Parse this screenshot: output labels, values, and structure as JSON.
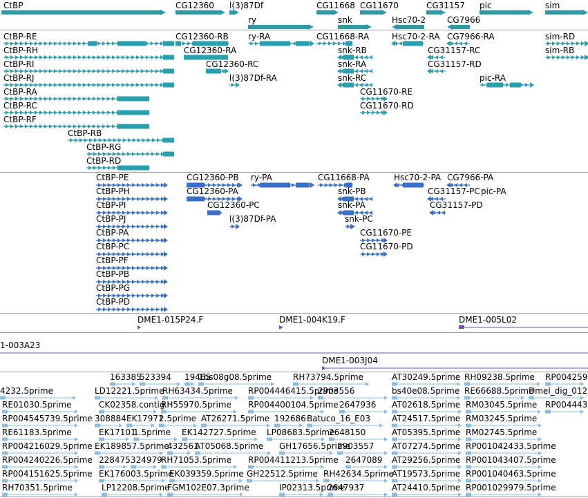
{
  "colors": {
    "gene": "#2e9aa4",
    "transcript_rna": "#2c9fae",
    "transcript_protein": "#3a6fc8",
    "clone": "#7a4fb0",
    "est": "#8cbce0",
    "divider": "#9a9a9a"
  },
  "genes": [
    "CtBP",
    "CG12360",
    "l(3)87Df",
    "CG11668",
    "CG11670",
    "CG31157",
    "pic",
    "sim",
    "ry",
    "snk",
    "Hsc70-2",
    "CG7966"
  ],
  "rna_transcripts": [
    "CtBP-RE",
    "CG12360-RB",
    "ry-RA",
    "CG11668-RA",
    "Hsc70-2-RA",
    "CG7966-RA",
    "sim-RD",
    "CtBP-RH",
    "CG12360-RA",
    "snk-RB",
    "CG31157-RC",
    "sim-RB",
    "CtBP-RI",
    "CG12360-RC",
    "snk-RA",
    "CG31157-RD",
    "CtBP-RJ",
    "l(3)87Df-RA",
    "snk-RC",
    "pic-RA",
    "CtBP-RA",
    "CG11670-RE",
    "CtBP-RC",
    "CG11670-RD",
    "CtBP-RF",
    "CtBP-RB",
    "CtBP-RG",
    "CtBP-RD"
  ],
  "protein_transcripts": [
    "CtBP-PE",
    "CG12360-PB",
    "ry-PA",
    "CG11668-PA",
    "Hsc70-2-PA",
    "CG7966-PA",
    "CtBP-PH",
    "CG12360-PA",
    "snk-PB",
    "CG31157-PC",
    "pic-PA",
    "CtBP-PI",
    "CG12360-PC",
    "snk-PA",
    "CG31157-PD",
    "CtBP-PJ",
    "l(3)87Df-PA",
    "snk-PC",
    "CtBP-PA",
    "CG11670-PE",
    "CtBP-PC",
    "CG11670-PD",
    "CtBP-PF",
    "CtBP-PB",
    "CtBP-PG",
    "CtBP-PD"
  ],
  "clones": [
    "DME1-015P24.F",
    "DME1-004K19.F",
    "DME1-005L02",
    "1-003A23",
    "DME1-003J04"
  ],
  "ests": [
    "163385",
    "523394",
    "19465",
    "1bs08g08.5prime",
    "RH73794.5prime",
    "AT30249.5prime",
    "RH09238.5prime",
    "RP004259",
    "4232.5prime",
    "LD12221.5prime",
    "RH63434.5prime",
    "RP004446415.5prime",
    "2903556",
    "bs40e08.5prime",
    "RE66688.5prime",
    "Dmel_dig_012",
    "RE01030.5prime",
    "CK02358.contig",
    "RH55970.5prime",
    "RP004400104.5prime",
    "2647936",
    "AT02618.5prime",
    "RM03045.5prime",
    "RP004443",
    "RP004545739.5prime",
    "308884",
    "EK17971",
    "2.5prime",
    "AT26271.5prime",
    "192686",
    "Batuco_16_E03",
    "AT24517.5prime",
    "RM03245.5prime",
    "RE61183.5prime",
    "EK17101",
    "1.5prime",
    "EK142727.5prime",
    "LP08683.5prime",
    "2648150",
    "AT05395.5prime",
    "RM02745.5prime",
    "RP004216029.5prime",
    "EK189857.5prime",
    "432561",
    "AT05068.5prime",
    "GH17656.5prime",
    "2903557",
    "AT07274.5prime",
    "RP001042433.5prime",
    "RP004240226.5prime",
    "228475",
    "324979",
    "RH71053.5prime",
    "RP004411213.5prime",
    "2647089",
    "AT29256.5prime",
    "RP001043407.5prime",
    "RP004151625.5prime",
    "EK176003.5prime",
    "EK039359.5prime",
    "GH22512.5prime",
    "RH42634.5prime",
    "AT19573.5prime",
    "RP001040463.5prime",
    "RH70351.5prime",
    "LP12208.5prime",
    "FGM102E07.3prime",
    "IP02313.5prime",
    "2647937",
    "AT24410.5prime",
    "RP001029979.5prime"
  ]
}
